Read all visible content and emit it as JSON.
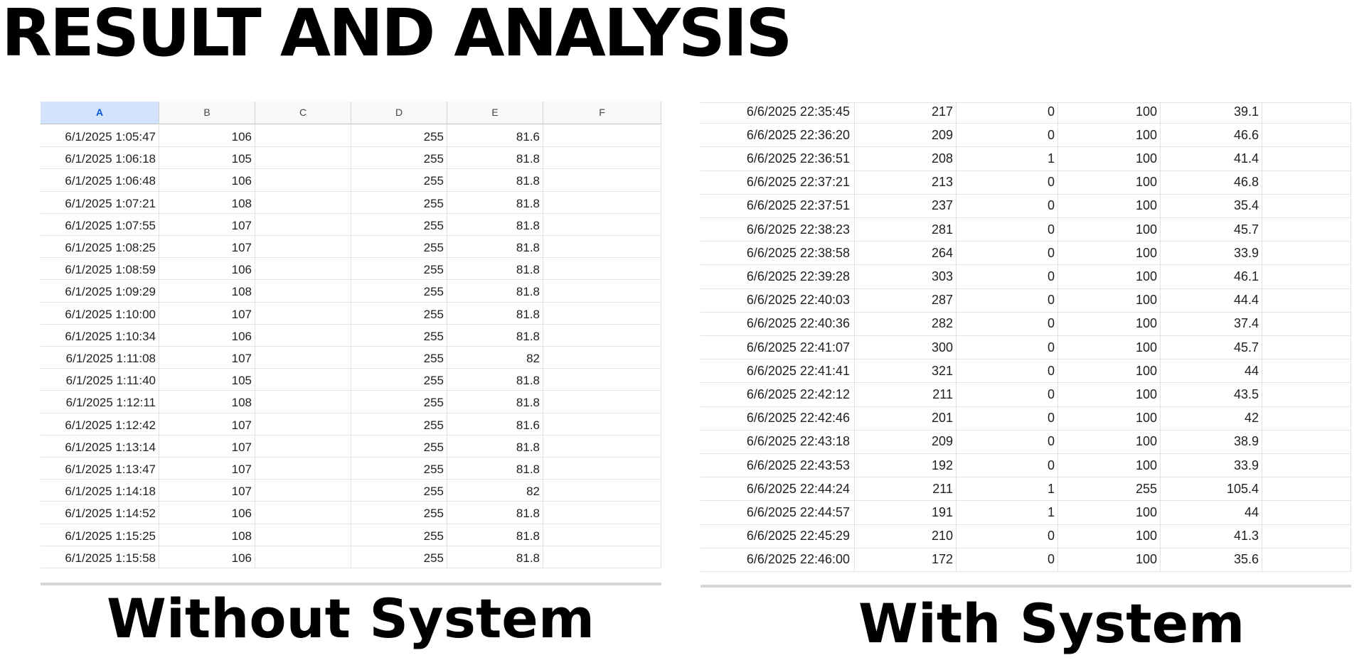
{
  "title": "RESULT AND ANALYSIS",
  "without_system": {
    "caption": "Without System",
    "column_headers": [
      "A",
      "B",
      "C",
      "D",
      "E",
      "F"
    ],
    "rows": [
      [
        "6/1/2025 1:05:47",
        "106",
        "",
        "255",
        "81.6",
        ""
      ],
      [
        "6/1/2025 1:06:18",
        "105",
        "",
        "255",
        "81.8",
        ""
      ],
      [
        "6/1/2025 1:06:48",
        "106",
        "",
        "255",
        "81.8",
        ""
      ],
      [
        "6/1/2025 1:07:21",
        "108",
        "",
        "255",
        "81.8",
        ""
      ],
      [
        "6/1/2025 1:07:55",
        "107",
        "",
        "255",
        "81.8",
        ""
      ],
      [
        "6/1/2025 1:08:25",
        "107",
        "",
        "255",
        "81.8",
        ""
      ],
      [
        "6/1/2025 1:08:59",
        "106",
        "",
        "255",
        "81.8",
        ""
      ],
      [
        "6/1/2025 1:09:29",
        "108",
        "",
        "255",
        "81.8",
        ""
      ],
      [
        "6/1/2025 1:10:00",
        "107",
        "",
        "255",
        "81.8",
        ""
      ],
      [
        "6/1/2025 1:10:34",
        "106",
        "",
        "255",
        "81.8",
        ""
      ],
      [
        "6/1/2025 1:11:08",
        "107",
        "",
        "255",
        "82",
        ""
      ],
      [
        "6/1/2025 1:11:40",
        "105",
        "",
        "255",
        "81.8",
        ""
      ],
      [
        "6/1/2025 1:12:11",
        "108",
        "",
        "255",
        "81.8",
        ""
      ],
      [
        "6/1/2025 1:12:42",
        "107",
        "",
        "255",
        "81.6",
        ""
      ],
      [
        "6/1/2025 1:13:14",
        "107",
        "",
        "255",
        "81.8",
        ""
      ],
      [
        "6/1/2025 1:13:47",
        "107",
        "",
        "255",
        "81.8",
        ""
      ],
      [
        "6/1/2025 1:14:18",
        "107",
        "",
        "255",
        "82",
        ""
      ],
      [
        "6/1/2025 1:14:52",
        "106",
        "",
        "255",
        "81.8",
        ""
      ],
      [
        "6/1/2025 1:15:25",
        "108",
        "",
        "255",
        "81.8",
        ""
      ],
      [
        "6/1/2025 1:15:58",
        "106",
        "",
        "255",
        "81.8",
        ""
      ]
    ]
  },
  "with_system": {
    "caption": "With System",
    "rows": [
      [
        "6/6/2025 22:35:45",
        "217",
        "0",
        "100",
        "39.1",
        ""
      ],
      [
        "6/6/2025 22:36:20",
        "209",
        "0",
        "100",
        "46.6",
        ""
      ],
      [
        "6/6/2025 22:36:51",
        "208",
        "1",
        "100",
        "41.4",
        ""
      ],
      [
        "6/6/2025 22:37:21",
        "213",
        "0",
        "100",
        "46.8",
        ""
      ],
      [
        "6/6/2025 22:37:51",
        "237",
        "0",
        "100",
        "35.4",
        ""
      ],
      [
        "6/6/2025 22:38:23",
        "281",
        "0",
        "100",
        "45.7",
        ""
      ],
      [
        "6/6/2025 22:38:58",
        "264",
        "0",
        "100",
        "33.9",
        ""
      ],
      [
        "6/6/2025 22:39:28",
        "303",
        "0",
        "100",
        "46.1",
        ""
      ],
      [
        "6/6/2025 22:40:03",
        "287",
        "0",
        "100",
        "44.4",
        ""
      ],
      [
        "6/6/2025 22:40:36",
        "282",
        "0",
        "100",
        "37.4",
        ""
      ],
      [
        "6/6/2025 22:41:07",
        "300",
        "0",
        "100",
        "45.7",
        ""
      ],
      [
        "6/6/2025 22:41:41",
        "321",
        "0",
        "100",
        "44",
        ""
      ],
      [
        "6/6/2025 22:42:12",
        "211",
        "0",
        "100",
        "43.5",
        ""
      ],
      [
        "6/6/2025 22:42:46",
        "201",
        "0",
        "100",
        "42",
        ""
      ],
      [
        "6/6/2025 22:43:18",
        "209",
        "0",
        "100",
        "38.9",
        ""
      ],
      [
        "6/6/2025 22:43:53",
        "192",
        "0",
        "100",
        "33.9",
        ""
      ],
      [
        "6/6/2025 22:44:24",
        "211",
        "1",
        "255",
        "105.4",
        ""
      ],
      [
        "6/6/2025 22:44:57",
        "191",
        "1",
        "100",
        "44",
        ""
      ],
      [
        "6/6/2025 22:45:29",
        "210",
        "0",
        "100",
        "41.3",
        ""
      ],
      [
        "6/6/2025 22:46:00",
        "172",
        "0",
        "100",
        "35.6",
        ""
      ]
    ]
  }
}
